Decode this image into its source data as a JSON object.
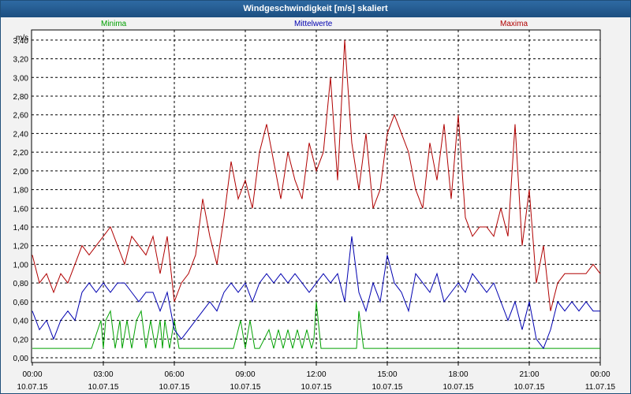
{
  "chart_data": {
    "type": "line",
    "title": "Windgeschwindigkeit [m/s] skaliert",
    "ylabel": "m/s",
    "ylim": [
      0,
      3.5
    ],
    "xlim": [
      0,
      24
    ],
    "yticks": [
      "0,00",
      "0,20",
      "0,40",
      "0,60",
      "0,80",
      "1,00",
      "1,20",
      "1,40",
      "1,60",
      "1,80",
      "2,00",
      "2,20",
      "2,40",
      "2,60",
      "2,80",
      "3,00",
      "3,20",
      "3,40"
    ],
    "xticks": [
      {
        "time": "00:00",
        "date": "10.07.15"
      },
      {
        "time": "03:00",
        "date": "10.07.15"
      },
      {
        "time": "06:00",
        "date": "10.07.15"
      },
      {
        "time": "09:00",
        "date": "10.07.15"
      },
      {
        "time": "12:00",
        "date": "10.07.15"
      },
      {
        "time": "15:00",
        "date": "10.07.15"
      },
      {
        "time": "18:00",
        "date": "10.07.15"
      },
      {
        "time": "21:00",
        "date": "10.07.15"
      },
      {
        "time": "00:00",
        "date": "11.07.15"
      }
    ],
    "series": [
      {
        "name": "Minima",
        "color": "#00a000",
        "x": [
          0,
          0.5,
          1,
          1.5,
          2,
          2.5,
          2.9,
          3.0,
          3.1,
          3.3,
          3.5,
          3.7,
          3.8,
          4.0,
          4.2,
          4.4,
          4.6,
          4.8,
          5.0,
          5.2,
          5.4,
          5.5,
          5.6,
          5.8,
          6.0,
          6.2,
          6.5,
          6.8,
          7.0,
          7.5,
          8.0,
          8.5,
          8.8,
          9.0,
          9.2,
          9.4,
          9.6,
          9.8,
          10.0,
          10.2,
          10.4,
          10.6,
          10.8,
          11.0,
          11.2,
          11.4,
          11.6,
          11.8,
          11.9,
          12.0,
          12.2,
          12.5,
          13.0,
          13.5,
          13.7,
          13.8,
          14.0,
          14.5,
          15.0,
          16.0,
          17.0,
          18.0,
          19.0,
          20.0,
          21.0,
          22.0,
          23.0,
          24.0
        ],
        "y": [
          0.1,
          0.1,
          0.1,
          0.1,
          0.1,
          0.1,
          0.4,
          0.1,
          0.4,
          0.5,
          0.1,
          0.4,
          0.1,
          0.4,
          0.1,
          0.4,
          0.5,
          0.1,
          0.4,
          0.1,
          0.4,
          0.1,
          0.4,
          0.1,
          0.4,
          0.1,
          0.1,
          0.1,
          0.1,
          0.1,
          0.1,
          0.1,
          0.4,
          0.1,
          0.4,
          0.1,
          0.1,
          0.2,
          0.3,
          0.1,
          0.3,
          0.1,
          0.3,
          0.1,
          0.3,
          0.1,
          0.3,
          0.1,
          0.2,
          0.6,
          0.1,
          0.1,
          0.1,
          0.1,
          0.1,
          0.5,
          0.1,
          0.1,
          0.1,
          0.1,
          0.1,
          0.1,
          0.1,
          0.1,
          0.1,
          0.1,
          0.1,
          0.1
        ]
      },
      {
        "name": "Mittelwerte",
        "color": "#0000b0",
        "x": [
          0,
          0.3,
          0.6,
          0.9,
          1.2,
          1.5,
          1.8,
          2.1,
          2.4,
          2.7,
          3.0,
          3.3,
          3.6,
          3.9,
          4.2,
          4.5,
          4.8,
          5.1,
          5.4,
          5.7,
          6.0,
          6.3,
          6.6,
          6.9,
          7.2,
          7.5,
          7.8,
          8.1,
          8.4,
          8.7,
          9.0,
          9.3,
          9.6,
          9.9,
          10.2,
          10.5,
          10.8,
          11.1,
          11.4,
          11.7,
          12.0,
          12.3,
          12.6,
          12.9,
          13.2,
          13.5,
          13.8,
          14.1,
          14.4,
          14.7,
          15.0,
          15.3,
          15.6,
          15.9,
          16.2,
          16.5,
          16.8,
          17.1,
          17.4,
          17.7,
          18.0,
          18.3,
          18.6,
          18.9,
          19.2,
          19.5,
          19.8,
          20.1,
          20.4,
          20.7,
          21.0,
          21.3,
          21.6,
          21.9,
          22.2,
          22.5,
          22.8,
          23.1,
          23.4,
          23.7,
          24.0
        ],
        "y": [
          0.5,
          0.3,
          0.4,
          0.2,
          0.4,
          0.5,
          0.4,
          0.7,
          0.8,
          0.7,
          0.8,
          0.7,
          0.8,
          0.8,
          0.7,
          0.6,
          0.7,
          0.7,
          0.5,
          0.7,
          0.3,
          0.2,
          0.3,
          0.4,
          0.5,
          0.6,
          0.5,
          0.7,
          0.8,
          0.7,
          0.8,
          0.6,
          0.8,
          0.9,
          0.8,
          0.9,
          0.8,
          0.9,
          0.8,
          0.7,
          0.8,
          0.9,
          0.8,
          0.9,
          0.6,
          1.3,
          0.7,
          0.5,
          0.8,
          0.6,
          1.1,
          0.8,
          0.7,
          0.5,
          0.9,
          0.8,
          0.7,
          0.9,
          0.6,
          0.7,
          0.8,
          0.7,
          0.9,
          0.8,
          0.7,
          0.8,
          0.6,
          0.4,
          0.6,
          0.3,
          0.6,
          0.2,
          0.1,
          0.3,
          0.6,
          0.5,
          0.6,
          0.5,
          0.6,
          0.5,
          0.5
        ]
      },
      {
        "name": "Maxima",
        "color": "#b00000",
        "x": [
          0,
          0.3,
          0.6,
          0.9,
          1.2,
          1.5,
          1.8,
          2.1,
          2.4,
          2.7,
          3.0,
          3.3,
          3.6,
          3.9,
          4.2,
          4.5,
          4.8,
          5.1,
          5.4,
          5.7,
          6.0,
          6.3,
          6.6,
          6.9,
          7.2,
          7.5,
          7.8,
          8.1,
          8.4,
          8.7,
          9.0,
          9.3,
          9.6,
          9.9,
          10.2,
          10.5,
          10.8,
          11.1,
          11.4,
          11.7,
          12.0,
          12.3,
          12.6,
          12.9,
          13.2,
          13.5,
          13.8,
          14.1,
          14.4,
          14.7,
          15.0,
          15.3,
          15.6,
          15.9,
          16.2,
          16.5,
          16.8,
          17.1,
          17.4,
          17.7,
          18.0,
          18.3,
          18.6,
          18.9,
          19.2,
          19.5,
          19.8,
          20.1,
          20.4,
          20.7,
          21.0,
          21.3,
          21.6,
          21.9,
          22.2,
          22.5,
          22.8,
          23.1,
          23.4,
          23.7,
          24.0
        ],
        "y": [
          1.1,
          0.8,
          0.9,
          0.7,
          0.9,
          0.8,
          1.0,
          1.2,
          1.1,
          1.2,
          1.3,
          1.4,
          1.2,
          1.0,
          1.3,
          1.2,
          1.1,
          1.3,
          0.9,
          1.3,
          0.6,
          0.8,
          0.9,
          1.1,
          1.7,
          1.3,
          1.0,
          1.5,
          2.1,
          1.7,
          1.9,
          1.6,
          2.2,
          2.5,
          2.1,
          1.7,
          2.2,
          1.9,
          1.7,
          2.3,
          2.0,
          2.2,
          3.0,
          1.9,
          3.4,
          2.3,
          1.8,
          2.4,
          1.6,
          1.8,
          2.4,
          2.6,
          2.4,
          2.2,
          1.8,
          1.6,
          2.3,
          1.9,
          2.5,
          1.7,
          2.6,
          1.5,
          1.3,
          1.4,
          1.4,
          1.3,
          1.6,
          1.3,
          2.5,
          1.2,
          1.8,
          0.8,
          1.2,
          0.5,
          0.8,
          0.9,
          0.9,
          0.9,
          0.9,
          1.0,
          0.9
        ]
      }
    ]
  }
}
